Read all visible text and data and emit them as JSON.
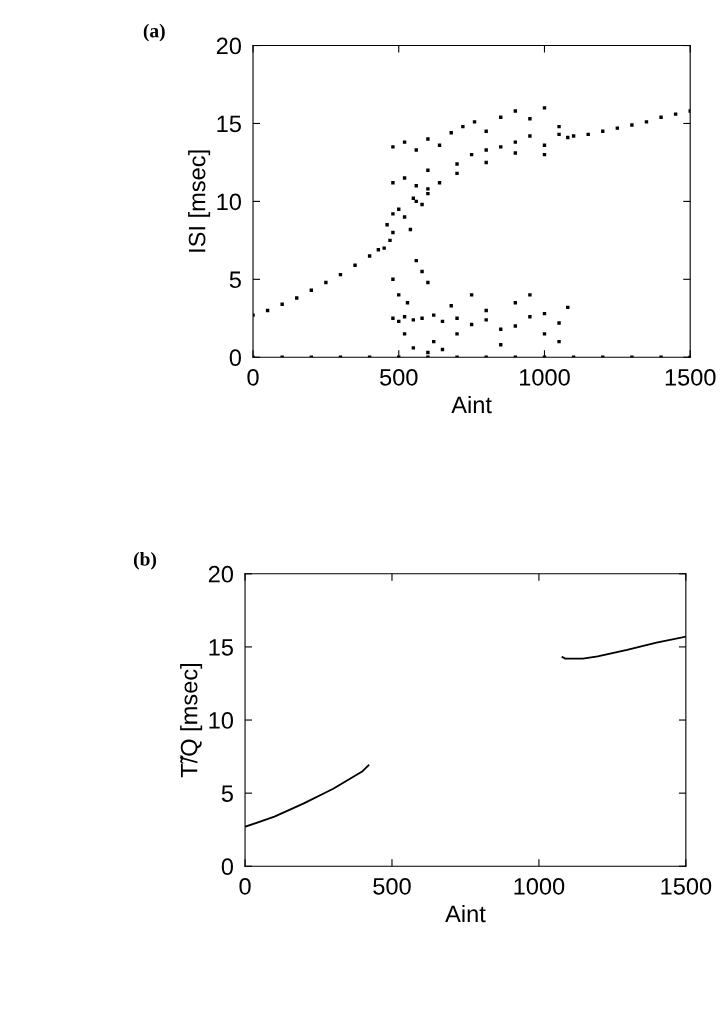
{
  "chart_data": [
    {
      "type": "scatter",
      "title": "(a)",
      "xlabel": "Aint",
      "ylabel": "ISI [msec]",
      "xlim": [
        0,
        1500
      ],
      "ylim": [
        0,
        20
      ],
      "xticks": [
        0,
        500,
        1000,
        1500
      ],
      "yticks": [
        0,
        5,
        10,
        15,
        20
      ],
      "grid": false,
      "legend": false,
      "marker": "square",
      "series": [
        {
          "color": "#000000",
          "x": [
            0,
            50,
            100,
            150,
            200,
            250,
            300,
            350,
            400,
            430,
            480,
            550,
            600,
            700,
            800,
            900,
            1000,
            1080,
            480,
            520,
            560,
            600,
            640,
            680,
            720,
            760,
            800,
            850,
            900,
            950,
            1000,
            1050,
            480,
            520,
            560,
            600,
            640,
            700,
            750,
            800,
            850,
            900,
            950,
            1000,
            1050,
            450,
            460,
            470,
            480,
            500,
            520,
            540,
            560,
            580,
            600,
            480,
            500,
            520,
            550,
            580,
            620,
            650,
            700,
            750,
            800,
            850,
            900,
            950,
            1000,
            1050,
            1080,
            480,
            500,
            530,
            560,
            600,
            620,
            650,
            680,
            700,
            750,
            800,
            850,
            900,
            950,
            1000,
            1050,
            550,
            600,
            580,
            520,
            1100,
            1150,
            1200,
            1250,
            1300,
            1350,
            1400,
            1450,
            1500,
            0,
            100,
            200,
            300,
            400,
            500,
            600,
            700,
            800,
            900,
            1000,
            1100,
            1200,
            1300,
            1400,
            1500
          ],
          "values": [
            2.7,
            3.0,
            3.4,
            3.8,
            4.3,
            4.8,
            5.3,
            5.9,
            6.5,
            6.9,
            9.2,
            10.2,
            10.8,
            11.8,
            12.5,
            13.1,
            13.6,
            14.1,
            13.5,
            13.8,
            13.3,
            14,
            13.6,
            14.4,
            14.8,
            15.1,
            14.5,
            15.4,
            15.8,
            15.3,
            16.0,
            14.8,
            11.2,
            11.5,
            11,
            12,
            11.2,
            12.4,
            13,
            13.3,
            13.5,
            13.8,
            14.2,
            13.0,
            14.3,
            7,
            8.5,
            7.5,
            8,
            9.5,
            9,
            8.2,
            10,
            9.8,
            10.5,
            2.5,
            2.3,
            2.6,
            2.4,
            2.5,
            2.7,
            2.3,
            2.5,
            2.1,
            2.4,
            1.8,
            2.0,
            2.6,
            1.5,
            2.2,
            3.2,
            5,
            4,
            3.5,
            6.2,
            4.8,
            1.0,
            0.5,
            3.3,
            1.5,
            4.0,
            3.0,
            0.8,
            3.5,
            4.0,
            2.8,
            1.0,
            0.6,
            0.3,
            5.5,
            1.5,
            14.2,
            14.3,
            14.5,
            14.7,
            14.9,
            15.1,
            15.4,
            15.6,
            15.8,
            0,
            0,
            0,
            0,
            0,
            0,
            0,
            0,
            0,
            0,
            0,
            0,
            0,
            0,
            0,
            0
          ]
        }
      ]
    },
    {
      "type": "line",
      "title": "(b)",
      "xlabel": "Aint",
      "ylabel": "T̃/Q [msec]",
      "xlim": [
        0,
        1500
      ],
      "ylim": [
        0,
        20
      ],
      "xticks": [
        0,
        500,
        1000,
        1500
      ],
      "yticks": [
        0,
        5,
        10,
        15,
        20
      ],
      "grid": false,
      "legend": false,
      "marker": "none",
      "line_style": "solid",
      "series": [
        {
          "color": "#000000",
          "x": [
            0,
            100,
            200,
            300,
            400,
            420,
            750,
            1080,
            1090,
            1150,
            1200,
            1300,
            1400,
            1500
          ],
          "values": [
            2.7,
            3.4,
            4.3,
            5.3,
            6.5,
            6.9,
            null,
            14.3,
            14.2,
            14.2,
            14.35,
            14.8,
            15.3,
            15.7
          ]
        }
      ]
    }
  ]
}
